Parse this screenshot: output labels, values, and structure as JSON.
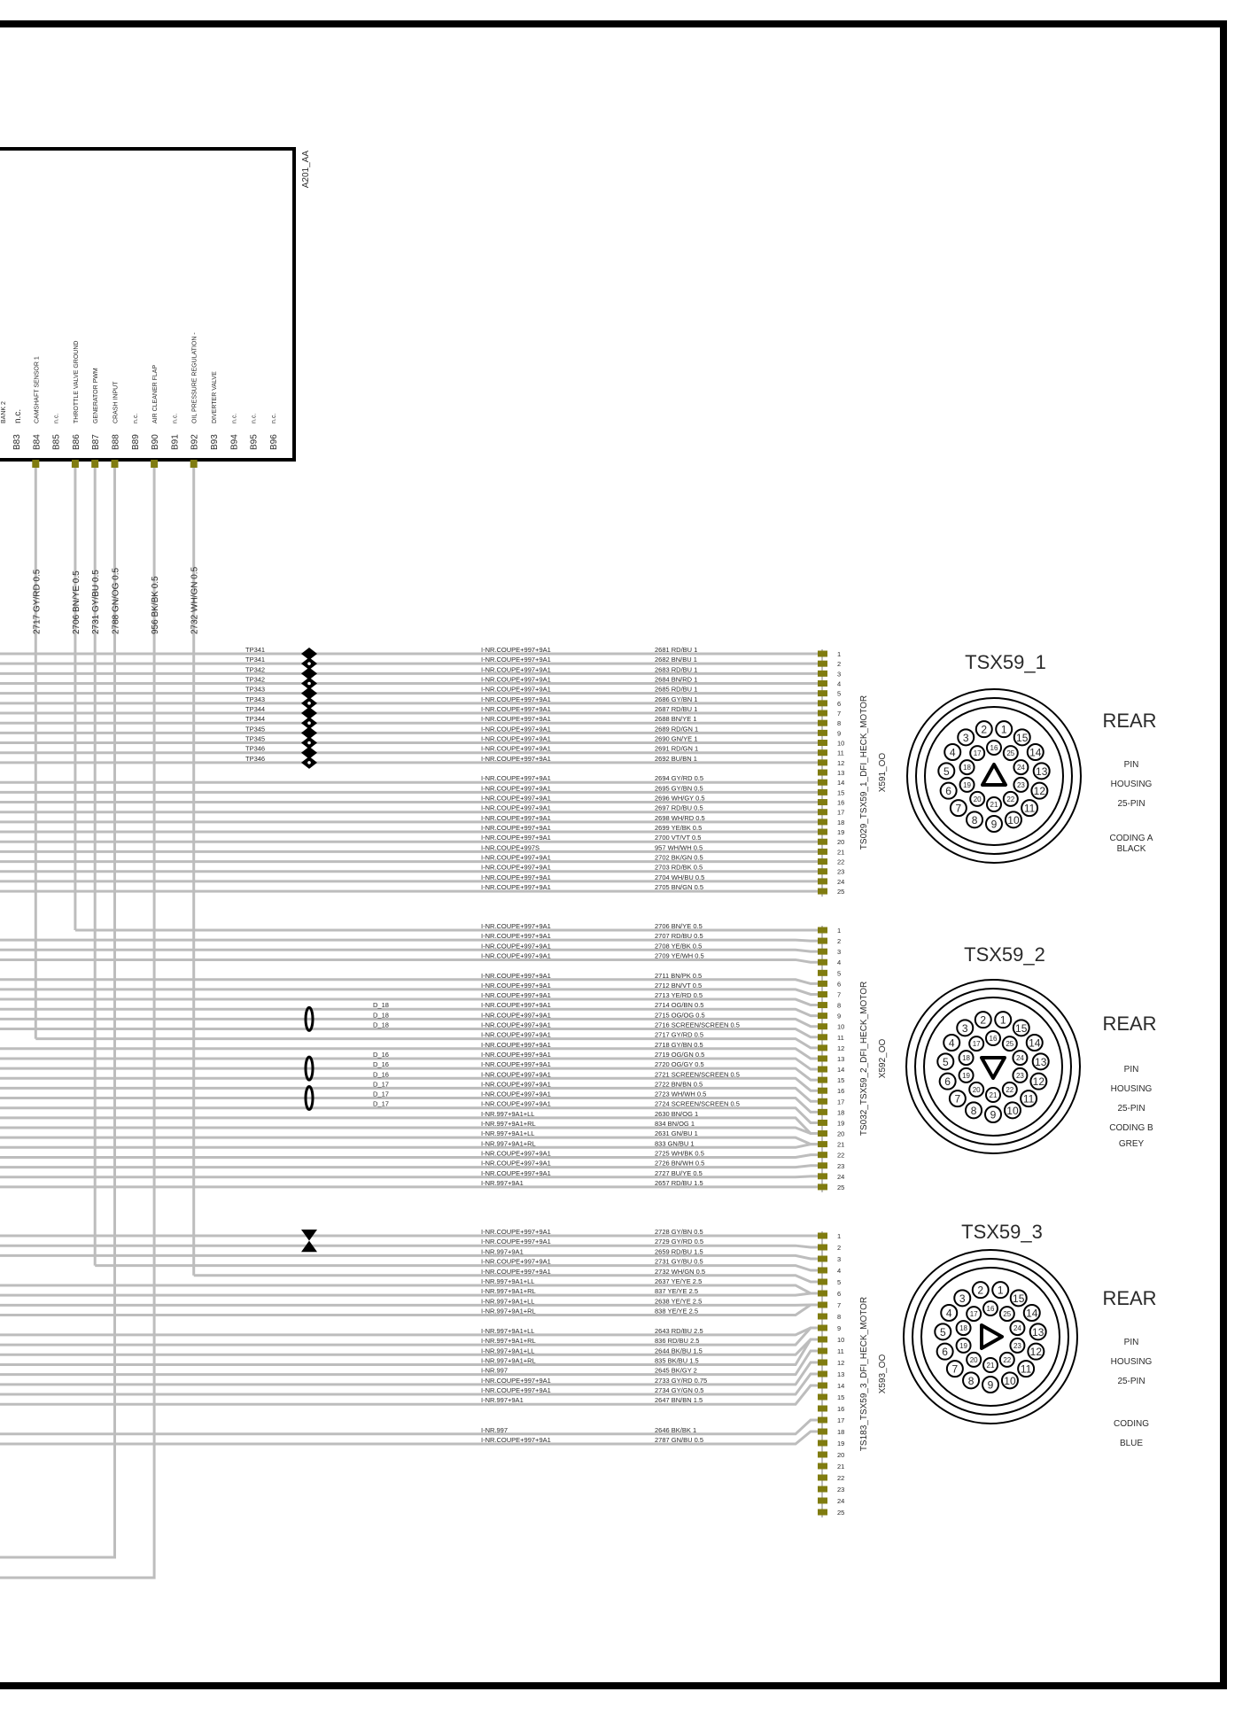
{
  "colors": {
    "terminal": "#807c10",
    "wire": "#bdbdbd",
    "ink": "#000000"
  },
  "ecu": {
    "label": "A201_AA",
    "partial_label": "BANK 2",
    "pins": [
      {
        "pin": "B83",
        "desc": "n.c."
      },
      {
        "pin": "B84",
        "desc": "CAMSHAFT  SENSOR 1"
      },
      {
        "pin": "B85",
        "desc": "n.c."
      },
      {
        "pin": "B86",
        "desc": "THROTTLE VALVE    GROUND"
      },
      {
        "pin": "B87",
        "desc": "GENERATOR PWM"
      },
      {
        "pin": "B88",
        "desc": "CRASH INPUT"
      },
      {
        "pin": "B89",
        "desc": "n.c."
      },
      {
        "pin": "B90",
        "desc": "AIR CLEANER   FLAP"
      },
      {
        "pin": "B91",
        "desc": "n.c."
      },
      {
        "pin": "B92",
        "desc": "OIL PRESSURE REGULATION    -"
      },
      {
        "pin": "B93",
        "desc": "DIVERTER VALVE"
      },
      {
        "pin": "B94",
        "desc": "n.c."
      },
      {
        "pin": "B95",
        "desc": "n.c."
      },
      {
        "pin": "B96",
        "desc": "n.c."
      }
    ]
  },
  "vertical_wires": [
    {
      "pin": "B84",
      "wire": "2717 GY/RD 0.5"
    },
    {
      "pin": "B86",
      "wire": "2706 BN/YE 0.5"
    },
    {
      "pin": "B87",
      "wire": "2731 GY/BU 0.5"
    },
    {
      "pin": "B88",
      "wire": "2788 GN/OG 0.5"
    },
    {
      "pin": "B90",
      "wire": "956 BK/BK 0.5"
    },
    {
      "pin": "B92",
      "wire": "2732 WH/GN 0.5"
    }
  ],
  "connectors": [
    {
      "title": "TSX59_1",
      "harness": "TS029_TSX59_1_DFI_HECK_MOTOR",
      "plug": "X591_OO",
      "view": "REAR",
      "info": [
        "PIN",
        "HOUSING",
        "25-PIN",
        "CODING A",
        "BLACK"
      ],
      "key_direction": "up",
      "pin_count": 25,
      "rows": [
        {
          "pin": 1,
          "tp": "TP341",
          "circuit": "I-NR.COUPE+997+9A1",
          "wire": "2681 RD/BU 1"
        },
        {
          "pin": 2,
          "tp": "TP341",
          "circuit": "I-NR.COUPE+997+9A1",
          "wire": "2682 BN/BU 1"
        },
        {
          "pin": 3,
          "tp": "TP342",
          "circuit": "I-NR.COUPE+997+9A1",
          "wire": "2683 RD/BU 1"
        },
        {
          "pin": 4,
          "tp": "TP342",
          "circuit": "I-NR.COUPE+997+9A1",
          "wire": "2684 BN/RD 1"
        },
        {
          "pin": 5,
          "tp": "TP343",
          "circuit": "I-NR.COUPE+997+9A1",
          "wire": "2685 RD/BU 1"
        },
        {
          "pin": 6,
          "tp": "TP343",
          "circuit": "I-NR.COUPE+997+9A1",
          "wire": "2686 GY/BN 1"
        },
        {
          "pin": 7,
          "tp": "TP344",
          "circuit": "I-NR.COUPE+997+9A1",
          "wire": "2687 RD/BU 1"
        },
        {
          "pin": 8,
          "tp": "TP344",
          "circuit": "I-NR.COUPE+997+9A1",
          "wire": "2688 BN/YE 1"
        },
        {
          "pin": 9,
          "tp": "TP345",
          "circuit": "I-NR.COUPE+997+9A1",
          "wire": "2689 RD/GN 1"
        },
        {
          "pin": 10,
          "tp": "TP345",
          "circuit": "I-NR.COUPE+997+9A1",
          "wire": "2690 GN/YE 1"
        },
        {
          "pin": 11,
          "tp": "TP346",
          "circuit": "I-NR.COUPE+997+9A1",
          "wire": "2691 RD/GN 1"
        },
        {
          "pin": 12,
          "tp": "TP346",
          "circuit": "I-NR.COUPE+997+9A1",
          "wire": "2692 BU/BN 1"
        },
        {
          "pin": 13
        },
        {
          "pin": 14,
          "circuit": "I-NR.COUPE+997+9A1",
          "wire": "2694 GY/RD 0.5"
        },
        {
          "pin": 15,
          "circuit": "I-NR.COUPE+997+9A1",
          "wire": "2695 GY/BN 0.5"
        },
        {
          "pin": 16,
          "circuit": "I-NR.COUPE+997+9A1",
          "wire": "2696 WH/GY 0.5"
        },
        {
          "pin": 17,
          "circuit": "I-NR.COUPE+997+9A1",
          "wire": "2697 RD/BU 0.5"
        },
        {
          "pin": 18,
          "circuit": "I-NR.COUPE+997+9A1",
          "wire": "2698 WH/RD 0.5"
        },
        {
          "pin": 19,
          "circuit": "I-NR.COUPE+997+9A1",
          "wire": "2699 YE/BK 0.5"
        },
        {
          "pin": 20,
          "circuit": "I-NR.COUPE+997+9A1",
          "wire": "2700 VT/VT 0.5"
        },
        {
          "pin": 21,
          "circuit": "I-NR.COUPE+997S",
          "wire": "957 WH/WH 0.5"
        },
        {
          "pin": 22,
          "circuit": "I-NR.COUPE+997+9A1",
          "wire": "2702 BK/GN 0.5"
        },
        {
          "pin": 23,
          "circuit": "I-NR.COUPE+997+9A1",
          "wire": "2703 RD/BK 0.5"
        },
        {
          "pin": 24,
          "circuit": "I-NR.COUPE+997+9A1",
          "wire": "2704 WH/BU 0.5"
        },
        {
          "pin": 25,
          "circuit": "I-NR.COUPE+997+9A1",
          "wire": "2705 BN/GN 0.5"
        }
      ]
    },
    {
      "title": "TSX59_2",
      "harness": "TS032_TSX59_2_DFI_HECK_MOTOR",
      "plug": "X592_OO",
      "view": "REAR",
      "info": [
        "PIN",
        "HOUSING",
        "25-PIN",
        "CODING B",
        "GREY"
      ],
      "key_direction": "down",
      "pin_count": 25,
      "rows": [
        {
          "pin": 1,
          "circuit": "I-NR.COUPE+997+9A1",
          "wire": "2706 BN/YE 0.5"
        },
        {
          "pin": 2,
          "circuit": "I-NR.COUPE+997+9A1",
          "wire": "2707 RD/BU 0.5"
        },
        {
          "pin": 3,
          "circuit": "I-NR.COUPE+997+9A1",
          "wire": "2708 YE/BK 0.5"
        },
        {
          "pin": 4,
          "circuit": "I-NR.COUPE+997+9A1",
          "wire": "2709 YE/WH 0.5"
        },
        {
          "pin": 5
        },
        {
          "pin": 6,
          "circuit": "I-NR.COUPE+997+9A1",
          "wire": "2711 BN/PK 0.5"
        },
        {
          "pin": 7,
          "circuit": "I-NR.COUPE+997+9A1",
          "wire": "2712 BN/VT 0.5"
        },
        {
          "pin": 8,
          "circuit": "I-NR.COUPE+997+9A1",
          "wire": "2713 YE/RD 0.5"
        },
        {
          "pin": 9,
          "splice": "D_18",
          "circuit": "I-NR.COUPE+997+9A1",
          "wire": "2714 OG/BN 0.5"
        },
        {
          "pin": 10,
          "splice": "D_18",
          "circuit": "I-NR.COUPE+997+9A1",
          "wire": "2715 OG/OG 0.5"
        },
        {
          "pin": 11,
          "splice": "D_18",
          "circuit": "I-NR.COUPE+997+9A1",
          "wire": "2716 SCREEN/SCREEN 0.5"
        },
        {
          "pin": 12,
          "circuit": "I-NR.COUPE+997+9A1",
          "wire": "2717 GY/RD 0.5"
        },
        {
          "pin": 13,
          "circuit": "I-NR.COUPE+997+9A1",
          "wire": "2718 GY/BN 0.5"
        },
        {
          "pin": 14,
          "splice": "D_16",
          "circuit": "I-NR.COUPE+997+9A1",
          "wire": "2719 OG/GN 0.5"
        },
        {
          "pin": 15,
          "splice": "D_16",
          "circuit": "I-NR.COUPE+997+9A1",
          "wire": "2720 OG/GY 0.5"
        },
        {
          "pin": 16,
          "splice": "D_16",
          "circuit": "I-NR.COUPE+997+9A1",
          "wire": "2721 SCREEN/SCREEN 0.5"
        },
        {
          "pin": 17,
          "splice": "D_17",
          "circuit": "I-NR.COUPE+997+9A1",
          "wire": "2722 BN/BN 0.5"
        },
        {
          "pin": 18,
          "splice": "D_17",
          "circuit": "I-NR.COUPE+997+9A1",
          "wire": "2723 WH/WH 0.5"
        },
        {
          "pin": 19,
          "splice": "D_17",
          "circuit": "I-NR.COUPE+997+9A1",
          "wire": "2724 SCREEN/SCREEN 0.5"
        },
        {
          "pin": 20,
          "circuit": "I-NR.997+9A1+LL",
          "wire": "2630 BN/OG 1"
        },
        {
          "pin": 20,
          "circuit": "I-NR.997+9A1+RL",
          "wire": "834 BN/OG 1"
        },
        {
          "pin": 21,
          "circuit": "I-NR.997+9A1+LL",
          "wire": "2631 GN/BU 1"
        },
        {
          "pin": 21,
          "circuit": "I-NR.997+9A1+RL",
          "wire": "833 GN/BU 1"
        },
        {
          "pin": 22,
          "circuit": "I-NR.COUPE+997+9A1",
          "wire": "2725 WH/BK 0.5"
        },
        {
          "pin": 23,
          "circuit": "I-NR.COUPE+997+9A1",
          "wire": "2726 BN/WH 0.5"
        },
        {
          "pin": 24,
          "circuit": "I-NR.COUPE+997+9A1",
          "wire": "2727 BU/YE 0.5"
        },
        {
          "pin": 25,
          "circuit": "I-NR.997+9A1",
          "wire": "2657 RD/BU 1.5"
        }
      ]
    },
    {
      "title": "TSX59_3",
      "harness": "TS183_TSX59_3_DFI_HECK_MOTOR",
      "plug": "X593_OO",
      "view": "REAR",
      "info": [
        "PIN",
        "HOUSING",
        "25-PIN",
        "CODING",
        "BLUE"
      ],
      "key_direction": "right",
      "pin_count": 25,
      "rows": [
        {
          "pin": 1,
          "twisted": true,
          "circuit": "I-NR.COUPE+997+9A1",
          "wire": "2728 GY/BN 0.5"
        },
        {
          "pin": 2,
          "twisted": true,
          "circuit": "I-NR.COUPE+997+9A1",
          "wire": "2729 GY/RD 0.5"
        },
        {
          "pin": 3,
          "circuit": "I-NR.997+9A1",
          "wire": "2659 RD/BU 1.5"
        },
        {
          "pin": 4,
          "circuit": "I-NR.COUPE+997+9A1",
          "wire": "2731 GY/BU 0.5"
        },
        {
          "pin": 5,
          "circuit": "I-NR.COUPE+997+9A1",
          "wire": "2732 WH/GN 0.5"
        },
        {
          "pin": 6,
          "circuit": "I-NR.997+9A1+LL",
          "wire": "2637 YE/YE 2.5"
        },
        {
          "pin": 6,
          "circuit": "I-NR.997+9A1+RL",
          "wire": "837 YE/YE 2.5"
        },
        {
          "pin": 7,
          "circuit": "I-NR.997+9A1+LL",
          "wire": "2638 YE/YE 2.5"
        },
        {
          "pin": 7,
          "circuit": "I-NR.997+9A1+RL",
          "wire": "838 YE/YE 2.5"
        },
        {
          "pin": 8
        },
        {
          "pin": 9,
          "circuit": "I-NR.997+9A1+LL",
          "wire": "2643 RD/BU 2.5"
        },
        {
          "pin": 9,
          "circuit": "I-NR.997+9A1+RL",
          "wire": "836 RD/BU 2.5"
        },
        {
          "pin": 10,
          "circuit": "I-NR.997+9A1+LL",
          "wire": "2644 BK/BU 1.5"
        },
        {
          "pin": 10,
          "circuit": "I-NR.997+9A1+RL",
          "wire": "835 BK/BU 1.5"
        },
        {
          "pin": 11,
          "circuit": "I-NR.997",
          "wire": "2645 BK/GY 2"
        },
        {
          "pin": 12,
          "circuit": "I-NR.COUPE+997+9A1",
          "wire": "2733 GY/RD 0.75"
        },
        {
          "pin": 13,
          "circuit": "I-NR.COUPE+997+9A1",
          "wire": "2734 GY/GN 0.5"
        },
        {
          "pin": 14,
          "circuit": "I-NR.997+9A1",
          "wire": "2647 BN/BN 1.5"
        },
        {
          "pin": 15
        },
        {
          "pin": 16
        },
        {
          "pin": 17,
          "circuit": "I-NR.997",
          "wire": "2646 BK/BK 1"
        },
        {
          "pin": 18,
          "circuit": "I-NR.COUPE+997+9A1",
          "wire": "2787 GN/BU 0.5"
        }
      ]
    }
  ]
}
